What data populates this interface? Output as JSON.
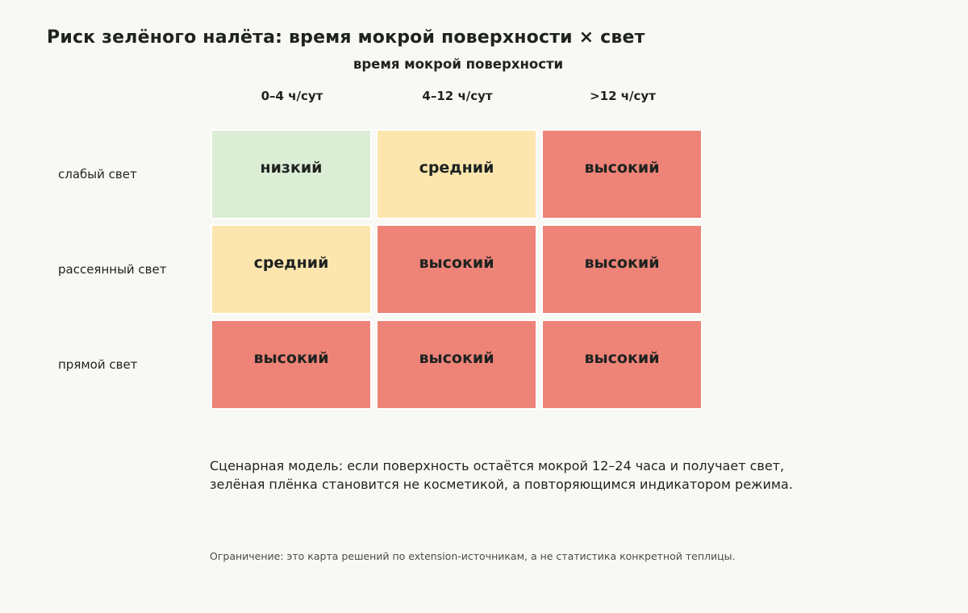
{
  "title": "Риск зелёного налёта: время мокрой поверхности × свет",
  "chart_data": {
    "type": "heatmap",
    "title": "Риск зелёного налёта: время мокрой поверхности × свет",
    "xlabel": "время мокрой поверхности",
    "ylabel": "",
    "columns": [
      "0–4 ч/сут",
      "4–12 ч/сут",
      ">12 ч/сут"
    ],
    "rows": [
      "слабый свет",
      "рассеянный свет",
      "прямой свет"
    ],
    "values": [
      [
        "низкий",
        "средний",
        "высокий"
      ],
      [
        "средний",
        "высокий",
        "высокий"
      ],
      [
        "высокий",
        "высокий",
        "высокий"
      ]
    ],
    "level_colors": {
      "низкий": "#dcedd6",
      "средний": "#fde6ae",
      "высокий": "#ee8378"
    }
  },
  "note": {
    "line1": "Сценарная модель: если поверхность остаётся мокрой 12–24 часа и получает свет,",
    "line2": "зелёная плёнка становится не косметикой, а повторяющимся индикатором режима."
  },
  "limitation": "Ограничение: это карта решений по extension-источникам, а не статистика конкретной теплицы."
}
